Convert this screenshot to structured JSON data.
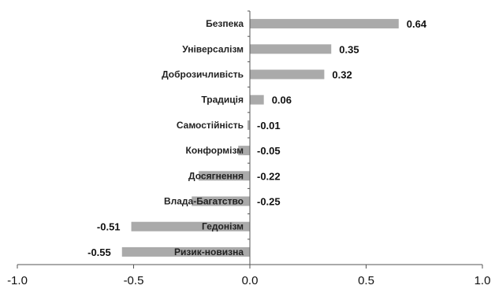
{
  "chart_data": {
    "type": "bar",
    "orientation": "horizontal",
    "categories": [
      "Безпека",
      "Універсалізм",
      "Доброзичливість",
      "Традиція",
      "Самостійність",
      "Конформізм",
      "Досягнення",
      "Влада-Багатство",
      "Гедонізм",
      "Ризик-новизна"
    ],
    "values": [
      0.64,
      0.35,
      0.32,
      0.06,
      -0.01,
      -0.05,
      -0.22,
      -0.25,
      -0.51,
      -0.55
    ],
    "value_labels": [
      "0.64",
      "0.35",
      "0.32",
      "0.06",
      "-0.01",
      "-0.05",
      "-0.22",
      "-0.25",
      "-0.51",
      "-0.55"
    ],
    "xlim": [
      -1.0,
      1.0
    ],
    "x_ticks": [
      -1.0,
      -0.5,
      0.0,
      0.5,
      1.0
    ],
    "x_tick_labels": [
      "-1.0",
      "-0.5",
      "0.0",
      "0.5",
      "1.0"
    ],
    "title": "",
    "xlabel": "",
    "ylabel": "",
    "grid": false,
    "legend": "none",
    "bar_color": "#aaaaaa",
    "axis_color": "#555555"
  }
}
